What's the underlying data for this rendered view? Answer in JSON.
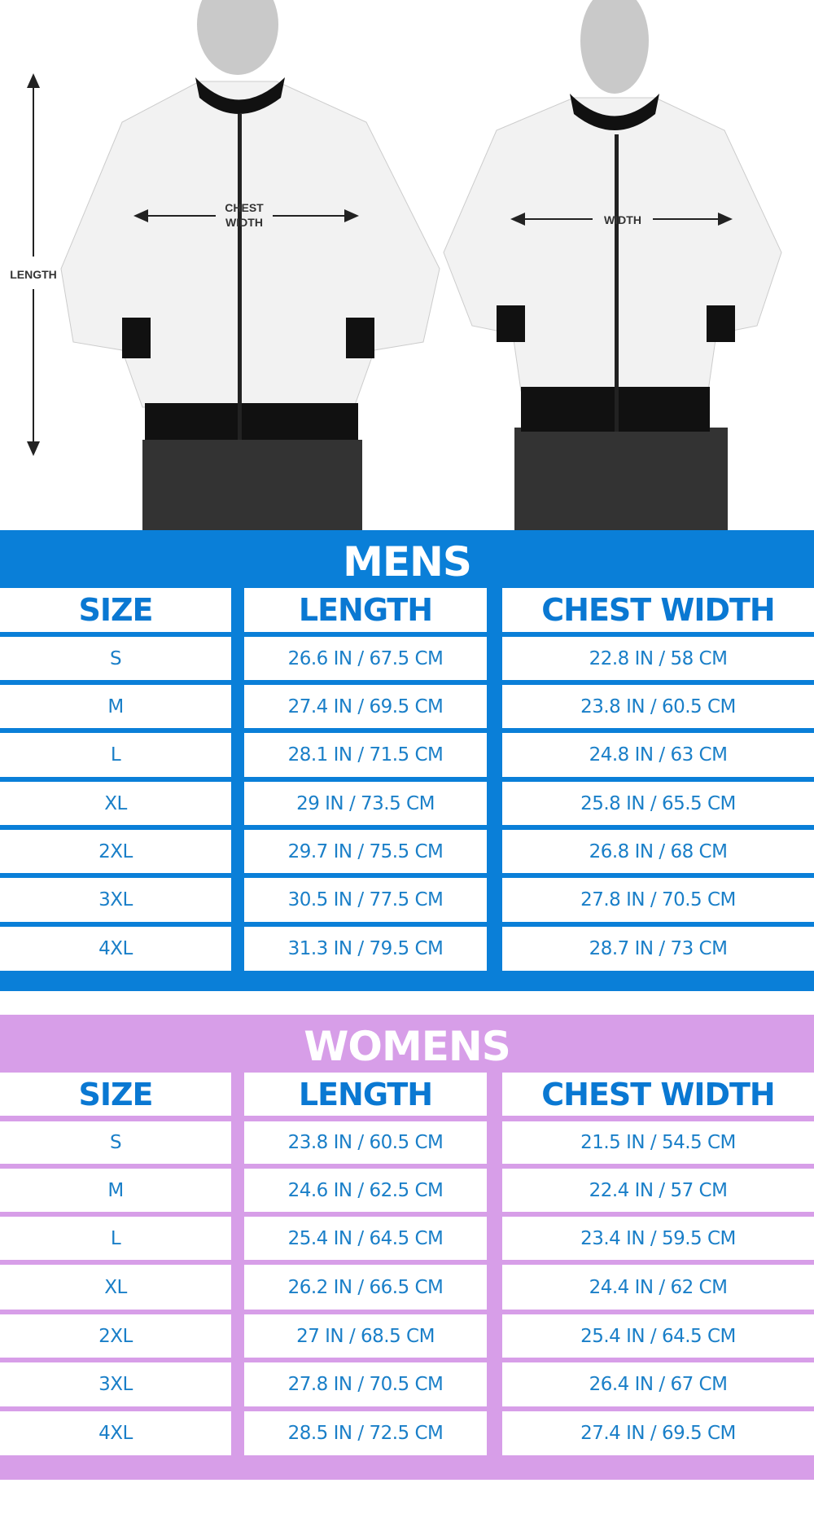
{
  "diagram": {
    "length_label": "LENGTH",
    "chest_width_label": [
      "CHEST",
      "WIDTH"
    ],
    "width_label": "WIDTH"
  },
  "colors": {
    "mens": "#0a7fd8",
    "womens": "#d79ee8",
    "text": "#1a7fc8"
  },
  "mens": {
    "title": "MENS",
    "headers": [
      "SIZE",
      "LENGTH",
      "CHEST WIDTH"
    ],
    "rows": [
      [
        "S",
        "26.6 IN / 67.5 CM",
        "22.8 IN / 58 CM"
      ],
      [
        "M",
        "27.4 IN / 69.5 CM",
        "23.8 IN / 60.5 CM"
      ],
      [
        "L",
        "28.1 IN / 71.5 CM",
        "24.8 IN / 63 CM"
      ],
      [
        "XL",
        "29 IN / 73.5 CM",
        "25.8 IN / 65.5 CM"
      ],
      [
        "2XL",
        "29.7 IN / 75.5 CM",
        "26.8 IN / 68 CM"
      ],
      [
        "3XL",
        "30.5 IN / 77.5 CM",
        "27.8 IN / 70.5 CM"
      ],
      [
        "4XL",
        "31.3 IN / 79.5 CM",
        "28.7 IN / 73 CM"
      ]
    ]
  },
  "womens": {
    "title": "WOMENS",
    "headers": [
      "SIZE",
      "LENGTH",
      "CHEST WIDTH"
    ],
    "rows": [
      [
        "S",
        "23.8 IN / 60.5 CM",
        "21.5 IN / 54.5 CM"
      ],
      [
        "M",
        "24.6 IN / 62.5 CM",
        "22.4 IN /  57 CM"
      ],
      [
        "L",
        "25.4 IN / 64.5 CM",
        "23.4 IN / 59.5 CM"
      ],
      [
        "XL",
        "26.2 IN / 66.5 CM",
        "24.4 IN / 62 CM"
      ],
      [
        "2XL",
        "27 IN / 68.5 CM",
        "25.4 IN / 64.5 CM"
      ],
      [
        "3XL",
        "27.8 IN / 70.5 CM",
        "26.4 IN / 67 CM"
      ],
      [
        "4XL",
        "28.5 IN / 72.5 CM",
        "27.4 IN / 69.5 CM"
      ]
    ]
  }
}
